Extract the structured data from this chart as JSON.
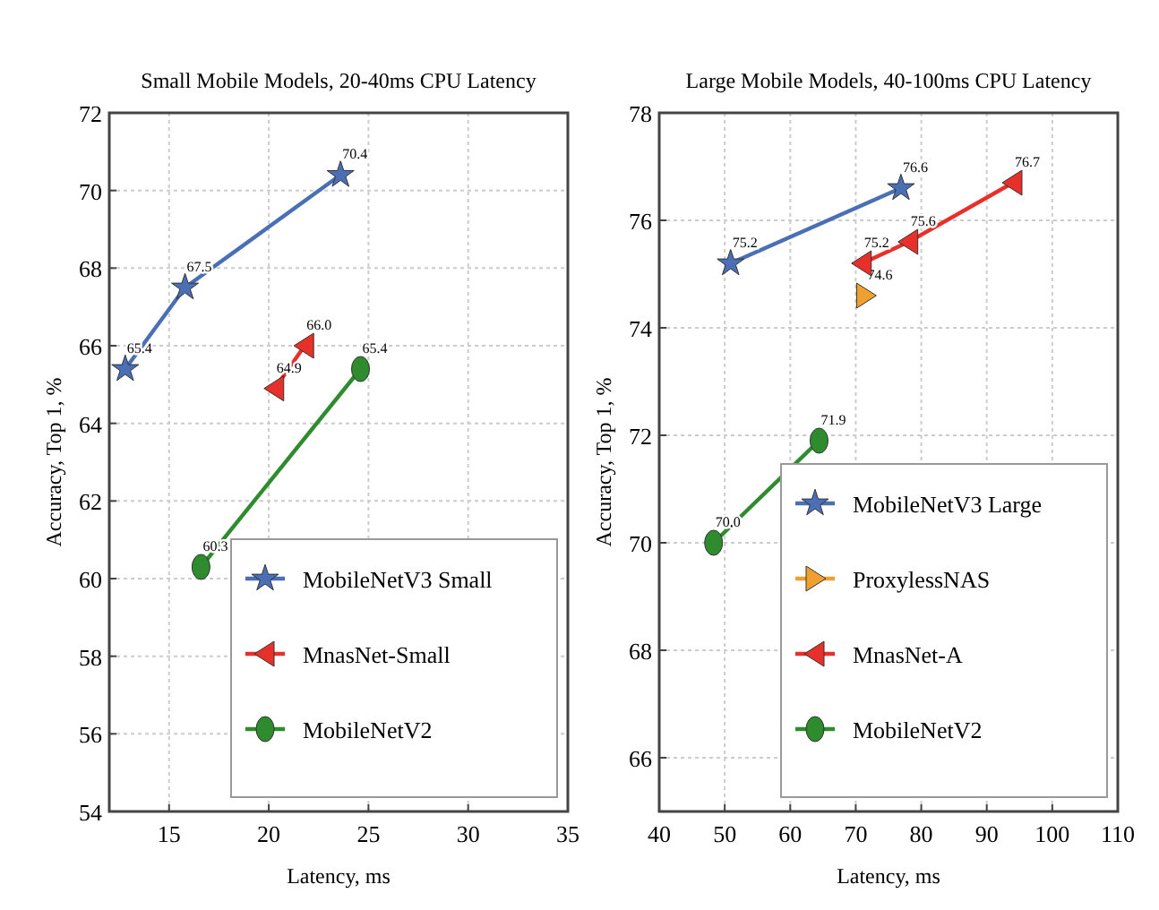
{
  "chart_data": [
    {
      "type": "line",
      "title": "Small Mobile Models, 20-40ms CPU Latency",
      "xlabel": "Latency, ms",
      "ylabel": "Accuracy, Top 1, %",
      "xlim": [
        12,
        35
      ],
      "xticks": [
        15,
        20,
        25,
        30,
        35
      ],
      "ylim": [
        54,
        72
      ],
      "yticks": [
        54,
        56,
        58,
        60,
        62,
        64,
        66,
        68,
        70,
        72
      ],
      "grid": true,
      "legend": "bottom right",
      "series": [
        {
          "name": "MobileNetV3 Small",
          "color": "#4a6fb5",
          "marker": "star",
          "x": [
            12.8,
            15.8,
            23.6
          ],
          "values": [
            65.4,
            67.5,
            70.4
          ],
          "value_labels": [
            "65.4",
            "67.5",
            "70.4"
          ]
        },
        {
          "name": "MnasNet-Small",
          "color": "#e8302a",
          "marker": "triangle-left",
          "x": [
            20.3,
            21.8
          ],
          "values": [
            64.9,
            66.0
          ],
          "value_labels": [
            "64.9",
            "66.0"
          ]
        },
        {
          "name": "MobileNetV2",
          "color": "#2e8b2e",
          "marker": "circle",
          "x": [
            16.6,
            24.6
          ],
          "values": [
            60.3,
            65.4
          ],
          "value_labels": [
            "60.3",
            "65.4"
          ]
        }
      ]
    },
    {
      "type": "line",
      "title": "Large Mobile Models, 40-100ms CPU Latency",
      "xlabel": "Latency, ms",
      "ylabel": "Accuracy, Top 1, %",
      "xlim": [
        40,
        110
      ],
      "xticks": [
        40,
        50,
        60,
        70,
        80,
        90,
        100,
        110
      ],
      "ylim": [
        65,
        78
      ],
      "yticks": [
        66,
        68,
        70,
        72,
        74,
        76,
        78
      ],
      "grid": true,
      "legend": "bottom right",
      "series": [
        {
          "name": "MobileNetV3 Large",
          "color": "#4a6fb5",
          "marker": "star",
          "x": [
            50.9,
            76.9
          ],
          "values": [
            75.2,
            76.6
          ],
          "value_labels": [
            "75.2",
            "76.6"
          ]
        },
        {
          "name": "ProxylessNAS",
          "color": "#f0a030",
          "marker": "triangle-right",
          "x": [
            71.5
          ],
          "values": [
            74.6
          ],
          "value_labels": [
            "74.6"
          ]
        },
        {
          "name": "MnasNet-A",
          "color": "#e8302a",
          "marker": "triangle-left",
          "x": [
            71.0,
            78.1,
            94.0
          ],
          "values": [
            75.2,
            75.6,
            76.7
          ],
          "value_labels": [
            "75.2",
            "75.6",
            "76.7"
          ]
        },
        {
          "name": "MobileNetV2",
          "color": "#2e8b2e",
          "marker": "circle",
          "x": [
            48.3,
            64.4
          ],
          "values": [
            70.0,
            71.9
          ],
          "value_labels": [
            "70.0",
            "71.9"
          ]
        }
      ]
    }
  ]
}
